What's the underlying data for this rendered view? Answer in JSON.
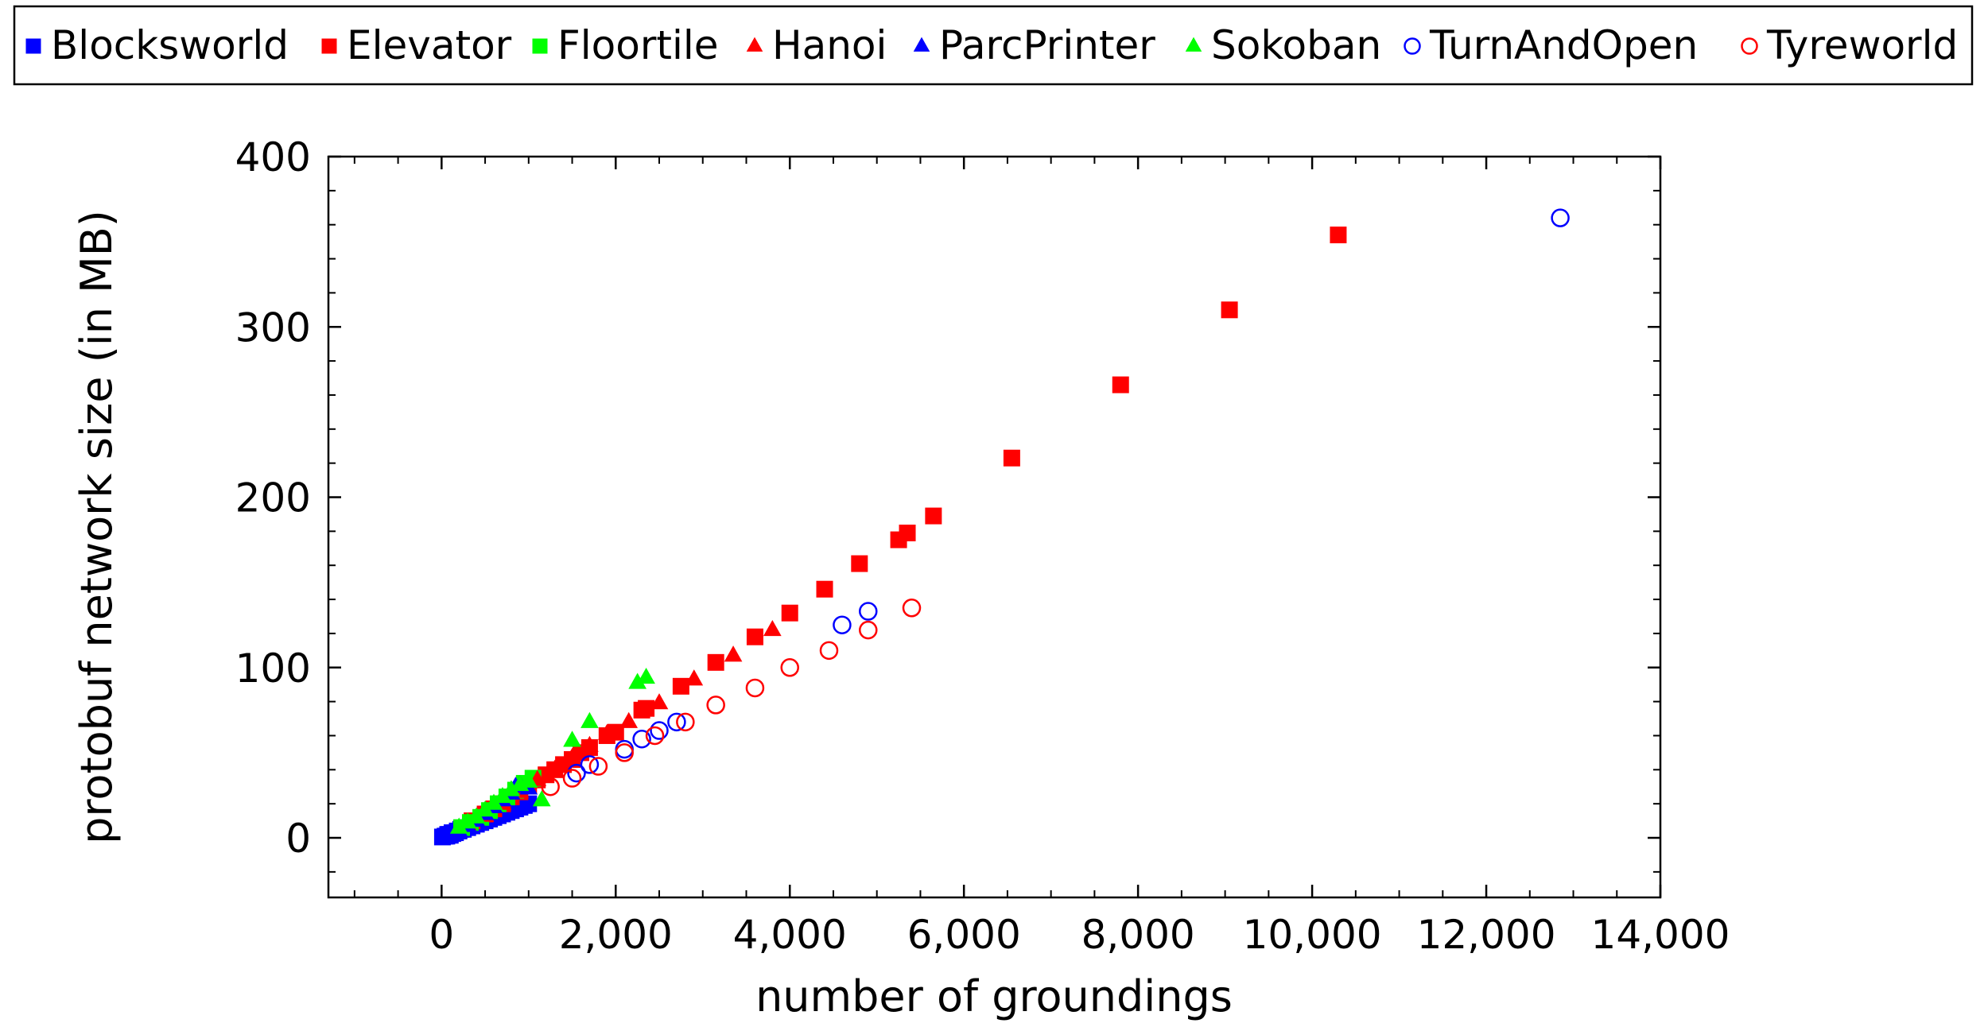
{
  "chart_data": {
    "type": "scatter",
    "xlabel": "number of groundings",
    "ylabel": "protobuf network size (in MB)",
    "xlim": [
      -1300,
      14000
    ],
    "ylim": [
      -35,
      400
    ],
    "xticks": [
      0,
      2000,
      4000,
      6000,
      8000,
      10000,
      12000,
      14000
    ],
    "xtick_labels": [
      "0",
      "2,000",
      "4,000",
      "6,000",
      "8,000",
      "10,000",
      "12,000",
      "14,000"
    ],
    "yticks": [
      0,
      100,
      200,
      300,
      400
    ],
    "ytick_labels": [
      "0",
      "100",
      "200",
      "300",
      "400"
    ],
    "grid": false,
    "legend_position": "top",
    "series": [
      {
        "name": "Blocksworld",
        "marker": "square",
        "filled": true,
        "color": "#0000ff",
        "points": [
          [
            10,
            0.5
          ],
          [
            40,
            1
          ],
          [
            70,
            2
          ],
          [
            100,
            1.5
          ],
          [
            130,
            2.5
          ],
          [
            160,
            3
          ],
          [
            200,
            4
          ],
          [
            250,
            5
          ],
          [
            300,
            6
          ],
          [
            350,
            7
          ],
          [
            400,
            8
          ],
          [
            450,
            9
          ],
          [
            500,
            10
          ],
          [
            550,
            11
          ],
          [
            600,
            12
          ],
          [
            650,
            13
          ],
          [
            700,
            14
          ],
          [
            750,
            15
          ],
          [
            800,
            16
          ],
          [
            850,
            17
          ],
          [
            900,
            18
          ],
          [
            950,
            19
          ],
          [
            1000,
            20
          ],
          [
            60,
            1
          ],
          [
            90,
            2
          ],
          [
            120,
            3
          ],
          [
            180,
            4
          ],
          [
            220,
            5
          ]
        ]
      },
      {
        "name": "Elevator",
        "marker": "square",
        "filled": true,
        "color": "#ff0000",
        "points": [
          [
            350,
            10
          ],
          [
            500,
            14
          ],
          [
            600,
            17
          ],
          [
            700,
            20
          ],
          [
            800,
            24
          ],
          [
            900,
            27
          ],
          [
            1000,
            31
          ],
          [
            1100,
            34
          ],
          [
            1200,
            37
          ],
          [
            1300,
            40
          ],
          [
            1400,
            43
          ],
          [
            1500,
            46
          ],
          [
            1600,
            50
          ],
          [
            1700,
            53
          ],
          [
            1900,
            60
          ],
          [
            2000,
            62
          ],
          [
            2300,
            75
          ],
          [
            2350,
            76
          ],
          [
            2750,
            89
          ],
          [
            3150,
            103
          ],
          [
            3600,
            118
          ],
          [
            4000,
            132
          ],
          [
            4400,
            146
          ],
          [
            4800,
            161
          ],
          [
            5250,
            175
          ],
          [
            5350,
            179
          ],
          [
            5650,
            189
          ],
          [
            6550,
            223
          ],
          [
            7800,
            266
          ],
          [
            9050,
            310
          ],
          [
            10300,
            354
          ]
        ]
      },
      {
        "name": "Floortile",
        "marker": "square",
        "filled": true,
        "color": "#00ff00",
        "points": [
          [
            230,
            6
          ],
          [
            330,
            9
          ],
          [
            450,
            12
          ],
          [
            550,
            16
          ],
          [
            650,
            20
          ],
          [
            750,
            24
          ],
          [
            850,
            28
          ],
          [
            950,
            32
          ],
          [
            1050,
            35
          ]
        ]
      },
      {
        "name": "Hanoi",
        "marker": "triangle",
        "filled": true,
        "color": "#ff0000",
        "points": [
          [
            300,
            8
          ],
          [
            500,
            13
          ],
          [
            700,
            20
          ],
          [
            900,
            27
          ],
          [
            1100,
            34
          ],
          [
            1300,
            40
          ],
          [
            1500,
            47
          ],
          [
            1700,
            54
          ],
          [
            1900,
            61
          ],
          [
            2150,
            68
          ],
          [
            2500,
            79
          ],
          [
            2900,
            93
          ],
          [
            3350,
            107
          ],
          [
            3800,
            122
          ]
        ]
      },
      {
        "name": "ParcPrinter",
        "marker": "triangle",
        "filled": true,
        "color": "#0000ff",
        "points": [
          [
            200,
            4
          ],
          [
            300,
            7
          ],
          [
            400,
            10
          ],
          [
            500,
            14
          ],
          [
            600,
            18
          ],
          [
            700,
            22
          ],
          [
            800,
            26
          ],
          [
            850,
            30
          ],
          [
            900,
            31
          ],
          [
            1000,
            29
          ]
        ]
      },
      {
        "name": "Sokoban",
        "marker": "triangle",
        "filled": true,
        "color": "#00ff00",
        "points": [
          [
            200,
            6
          ],
          [
            300,
            9
          ],
          [
            400,
            12
          ],
          [
            500,
            16
          ],
          [
            600,
            20
          ],
          [
            700,
            24
          ],
          [
            800,
            28
          ],
          [
            900,
            31
          ],
          [
            1000,
            33
          ],
          [
            1150,
            22
          ],
          [
            1500,
            57
          ],
          [
            1700,
            68
          ],
          [
            2250,
            91
          ],
          [
            2350,
            94
          ]
        ]
      },
      {
        "name": "TurnAndOpen",
        "marker": "circle",
        "filled": false,
        "color": "#0000ff",
        "points": [
          [
            1550,
            38
          ],
          [
            1700,
            43
          ],
          [
            2100,
            52
          ],
          [
            2300,
            58
          ],
          [
            2500,
            63
          ],
          [
            2700,
            68
          ],
          [
            4600,
            125
          ],
          [
            4900,
            133
          ],
          [
            12850,
            364
          ]
        ]
      },
      {
        "name": "Tyreworld",
        "marker": "circle",
        "filled": false,
        "color": "#ff0000",
        "points": [
          [
            1250,
            30
          ],
          [
            1500,
            35
          ],
          [
            1800,
            42
          ],
          [
            2100,
            50
          ],
          [
            2450,
            60
          ],
          [
            2800,
            68
          ],
          [
            3150,
            78
          ],
          [
            3600,
            88
          ],
          [
            4000,
            100
          ],
          [
            4450,
            110
          ],
          [
            4900,
            122
          ],
          [
            5400,
            135
          ]
        ]
      }
    ]
  }
}
